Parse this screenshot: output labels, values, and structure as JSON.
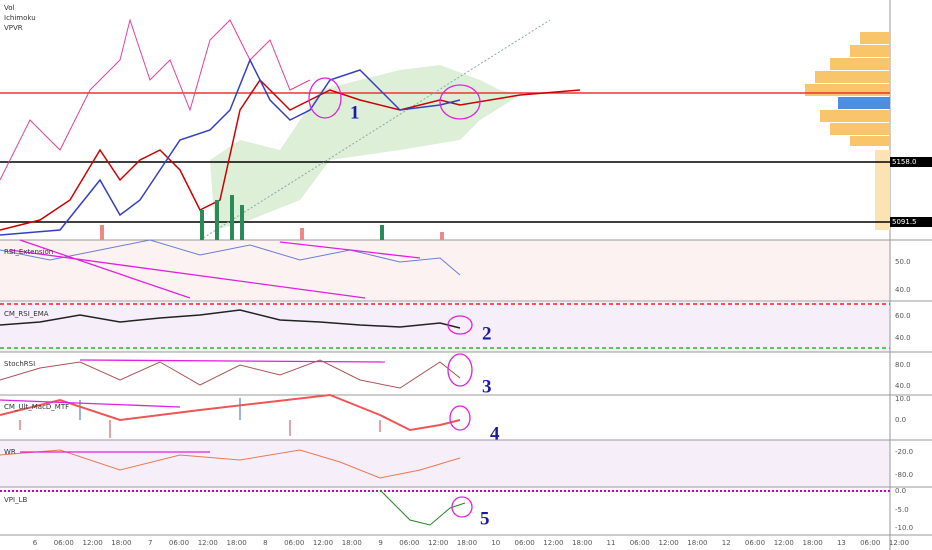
{
  "main_pane": {
    "labels": [
      "Vol",
      "Ichimoku",
      "VPVR"
    ],
    "price_marks": [
      {
        "label": "5158.0",
        "row": 162
      },
      {
        "label": "5091.5",
        "row": 222
      }
    ]
  },
  "panes": [
    {
      "name": "RSI_Extension",
      "ticks": [
        {
          "label": "50.0",
          "row": 262
        },
        {
          "label": "40.0",
          "row": 290
        }
      ]
    },
    {
      "name": "CM_RSI_EMA",
      "ticks": [
        {
          "label": "60.0",
          "row": 316
        },
        {
          "label": "40.0",
          "row": 338
        }
      ]
    },
    {
      "name": "StochRSI",
      "ticks": [
        {
          "label": "80.0",
          "row": 365
        },
        {
          "label": "40.0",
          "row": 386
        }
      ]
    },
    {
      "name": "CM_Ult_MacD_MTF",
      "ticks": [
        {
          "label": "10.0",
          "row": 399
        },
        {
          "label": "0.0",
          "row": 420
        }
      ]
    },
    {
      "name": "WR",
      "ticks": [
        {
          "label": "-20.0",
          "row": 452
        },
        {
          "label": "-80.0",
          "row": 475
        }
      ]
    },
    {
      "name": "VPI_LB",
      "ticks": [
        {
          "label": "0.0",
          "row": 491
        },
        {
          "label": "-5.0",
          "row": 510
        },
        {
          "label": "-10.0",
          "row": 528
        }
      ]
    }
  ],
  "annotations": [
    "1",
    "2",
    "3",
    "4",
    "5"
  ],
  "time_axis": [
    "6",
    "06:00",
    "12:00",
    "18:00",
    "7",
    "06:00",
    "12:00",
    "18:00",
    "8",
    "06:00",
    "12:00",
    "18:00",
    "9",
    "06:00",
    "12:00",
    "18:00",
    "10",
    "06:00",
    "12:00",
    "18:00",
    "11",
    "06:00",
    "12:00",
    "18:00",
    "12",
    "06:00",
    "12:00",
    "18:00",
    "13",
    "06:00",
    "12:00"
  ]
}
